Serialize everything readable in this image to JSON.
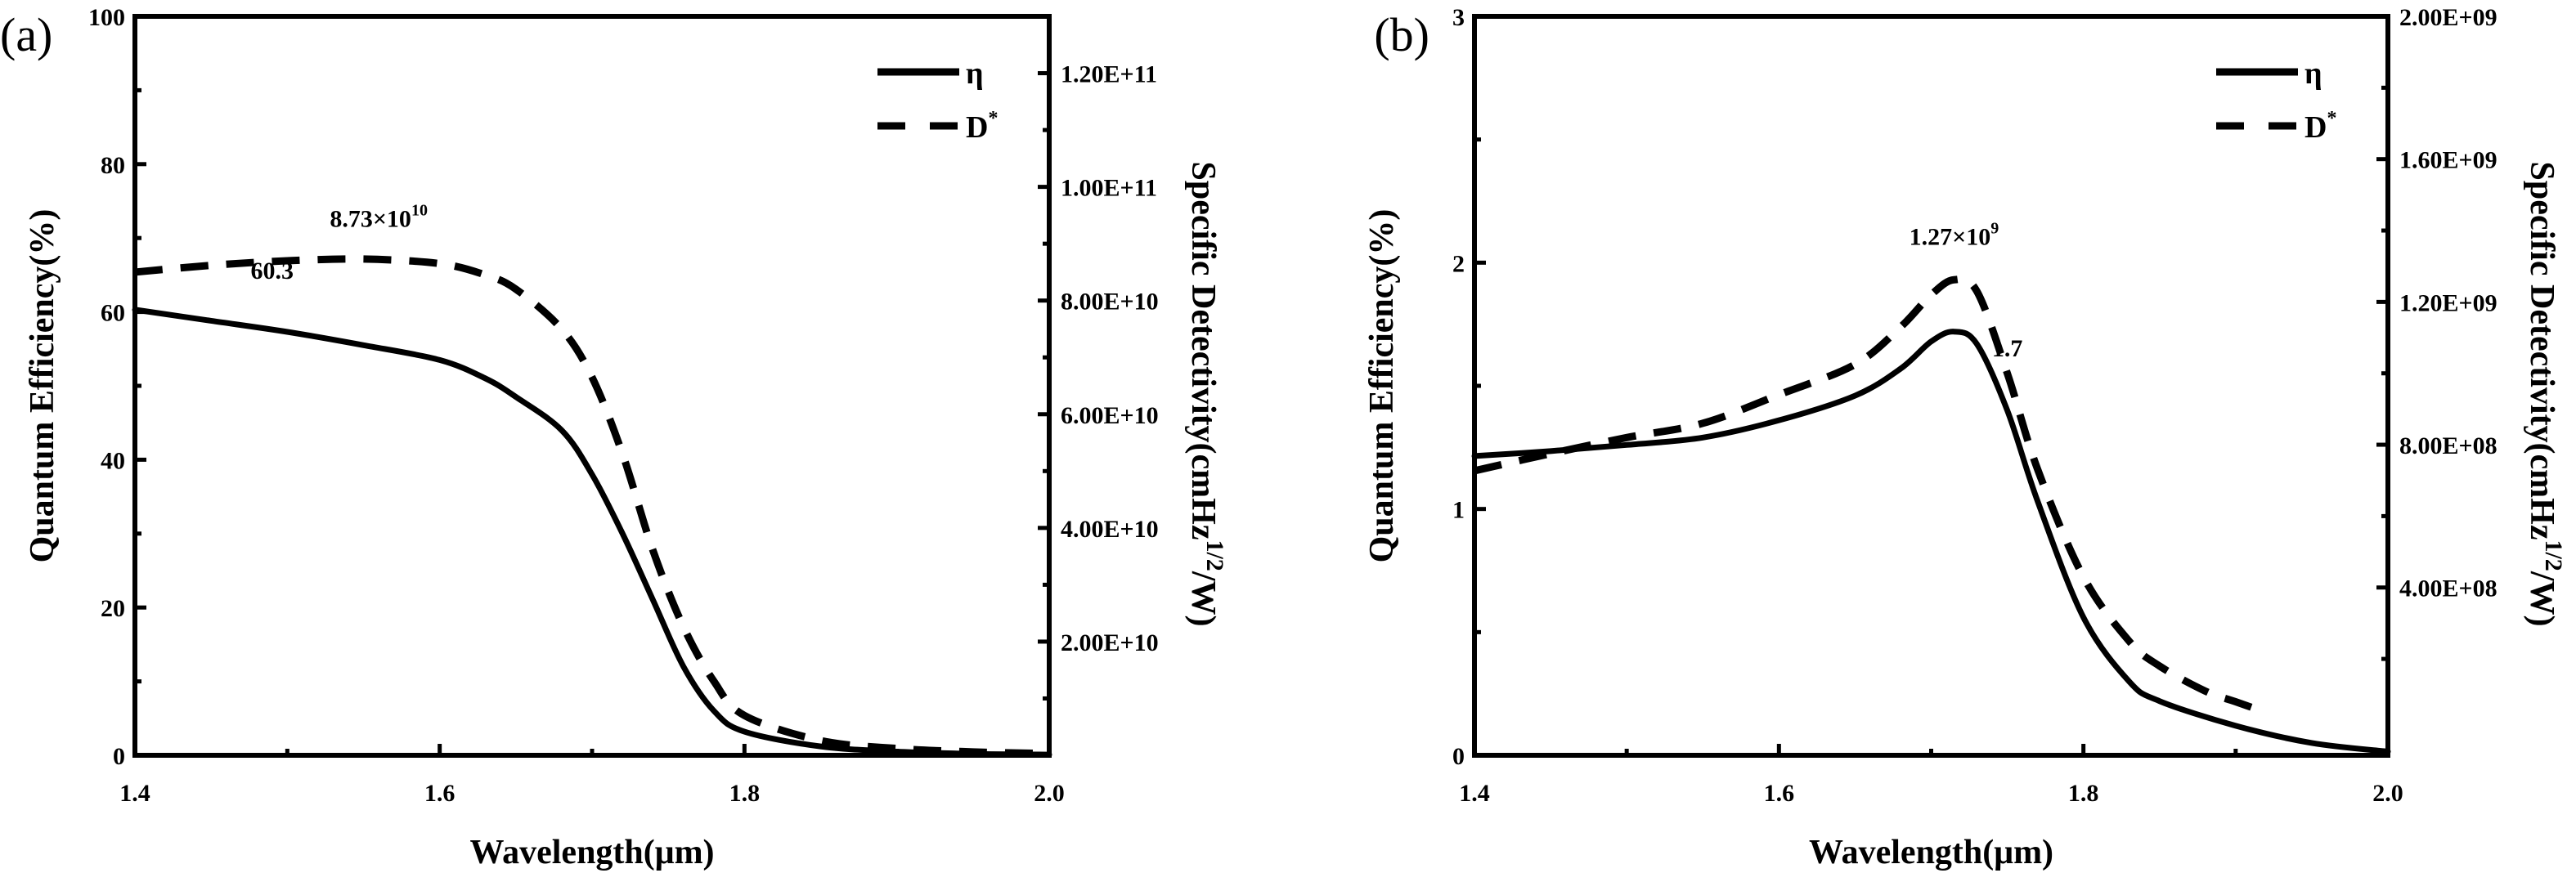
{
  "chart_data": [
    {
      "type": "line",
      "panel_label": "(a)",
      "xlabel": "Wavelength(μm)",
      "ylabel": "Quantum Efficiency(%)",
      "y2label": "Specific Detectivity(cmHz",
      "y2label_sup": "1/2",
      "y2label_tail": "/W)",
      "xlim": [
        1.4,
        2.0
      ],
      "ylim": [
        0,
        100
      ],
      "y2lim": [
        0,
        130000000000.0
      ],
      "xticks": [
        "1.4",
        "1.6",
        "1.8",
        "2.0"
      ],
      "xtick_values": [
        1.4,
        1.6,
        1.8,
        2.0
      ],
      "yticks": [
        "0",
        "20",
        "40",
        "60",
        "80",
        "100"
      ],
      "ytick_values": [
        0,
        20,
        40,
        60,
        80,
        100
      ],
      "y2ticks": [
        "2.00E+10",
        "4.00E+10",
        "6.00E+10",
        "8.00E+10",
        "1.00E+11",
        "1.20E+11"
      ],
      "y2tick_values": [
        20000000000.0,
        40000000000.0,
        60000000000.0,
        80000000000.0,
        100000000000.0,
        120000000000.0
      ],
      "legend": {
        "position": "top-right",
        "entries": [
          {
            "label": "η",
            "style": "solid"
          },
          {
            "label": "D",
            "sup": "*",
            "style": "dashed"
          }
        ]
      },
      "grid": false,
      "series": [
        {
          "name": "η",
          "axis": "left",
          "style": "solid",
          "x": [
            1.4,
            1.45,
            1.5,
            1.55,
            1.6,
            1.63,
            1.65,
            1.68,
            1.7,
            1.72,
            1.74,
            1.76,
            1.78,
            1.8,
            1.85,
            1.9,
            1.95,
            2.0
          ],
          "y": [
            60.3,
            58.8,
            57.3,
            55.5,
            53.5,
            51,
            48.5,
            44,
            38,
            30,
            21,
            12,
            6,
            3.2,
            1.2,
            0.5,
            0.2,
            0.1
          ]
        },
        {
          "name": "D*",
          "axis": "right",
          "style": "dashed",
          "x": [
            1.4,
            1.45,
            1.5,
            1.55,
            1.6,
            1.63,
            1.65,
            1.68,
            1.7,
            1.72,
            1.74,
            1.76,
            1.78,
            1.8,
            1.85,
            1.9,
            1.95,
            2.0
          ],
          "y": [
            85000000000.0,
            86200000000.0,
            87000000000.0,
            87300000000.0,
            86500000000.0,
            84500000000.0,
            82000000000.0,
            75000000000.0,
            66500000000.0,
            53000000000.0,
            36000000000.0,
            22600000000.0,
            13000000000.0,
            7000000000.0,
            2600000000.0,
            1200000000.0,
            600000000.0,
            300000000.0
          ]
        }
      ],
      "annotations": [
        {
          "text": "60.3",
          "x": 1.49,
          "y": 64.5,
          "axis": "left"
        },
        {
          "text": "8.73×10",
          "sup": "10",
          "x": 1.56,
          "y": 93000000000.0,
          "axis": "right"
        }
      ]
    },
    {
      "type": "line",
      "panel_label": "(b)",
      "xlabel": "Wavelength(μm)",
      "ylabel": "Quantum Efficiency(%)",
      "y2label": "Specific Detectivity(cmHz",
      "y2label_sup": "1/2",
      "y2label_tail": "/W)",
      "xlim": [
        1.4,
        2.0
      ],
      "ylim": [
        0,
        3
      ],
      "y2lim": [
        -70000000.0,
        2000000000.0
      ],
      "xticks": [
        "1.4",
        "1.6",
        "1.8",
        "2.0"
      ],
      "xtick_values": [
        1.4,
        1.6,
        1.8,
        2.0
      ],
      "yticks": [
        "0",
        "1",
        "2",
        "3"
      ],
      "ytick_values": [
        0,
        1,
        2,
        3
      ],
      "y2ticks": [
        "4.00E+08",
        "8.00E+08",
        "1.20E+09",
        "1.60E+09",
        "2.00E+09"
      ],
      "y2tick_values": [
        400000000.0,
        800000000.0,
        1200000000.0,
        1600000000.0,
        2000000000.0
      ],
      "legend": {
        "position": "top-right",
        "entries": [
          {
            "label": "η",
            "style": "solid"
          },
          {
            "label": "D",
            "sup": "*",
            "style": "dashed"
          }
        ]
      },
      "grid": false,
      "series": [
        {
          "name": "η",
          "axis": "left",
          "style": "solid",
          "x": [
            1.4,
            1.45,
            1.5,
            1.55,
            1.6,
            1.65,
            1.68,
            1.7,
            1.715,
            1.73,
            1.75,
            1.77,
            1.8,
            1.83,
            1.85,
            1.9,
            1.95,
            2.0
          ],
          "y": [
            1.215,
            1.235,
            1.26,
            1.29,
            1.36,
            1.46,
            1.57,
            1.68,
            1.72,
            1.67,
            1.4,
            1.03,
            0.56,
            0.3,
            0.22,
            0.12,
            0.05,
            0.015
          ]
        },
        {
          "name": "D*",
          "axis": "right",
          "style": "dashed",
          "x": [
            1.4,
            1.45,
            1.5,
            1.55,
            1.6,
            1.65,
            1.68,
            1.7,
            1.715,
            1.73,
            1.75,
            1.77,
            1.8,
            1.83,
            1.85,
            1.88,
            1.9,
            1.92
          ],
          "y": [
            727000000.0,
            775000000.0,
            820000000.0,
            860000000.0,
            940000000.0,
            1025000000.0,
            1130000000.0,
            1220000000.0,
            1262000000.0,
            1230000000.0,
            1000000000.0,
            730000000.0,
            430000000.0,
            250000000.0,
            180000000.0,
            110000000.0,
            80000000.0,
            50000000.0
          ]
        }
      ],
      "annotations": [
        {
          "text": "1.27×10",
          "sup": "9",
          "x": 1.715,
          "y": 1360000000.0,
          "axis": "right"
        },
        {
          "text": "1.7",
          "x": 1.75,
          "y": 1.62,
          "axis": "left"
        }
      ]
    }
  ]
}
